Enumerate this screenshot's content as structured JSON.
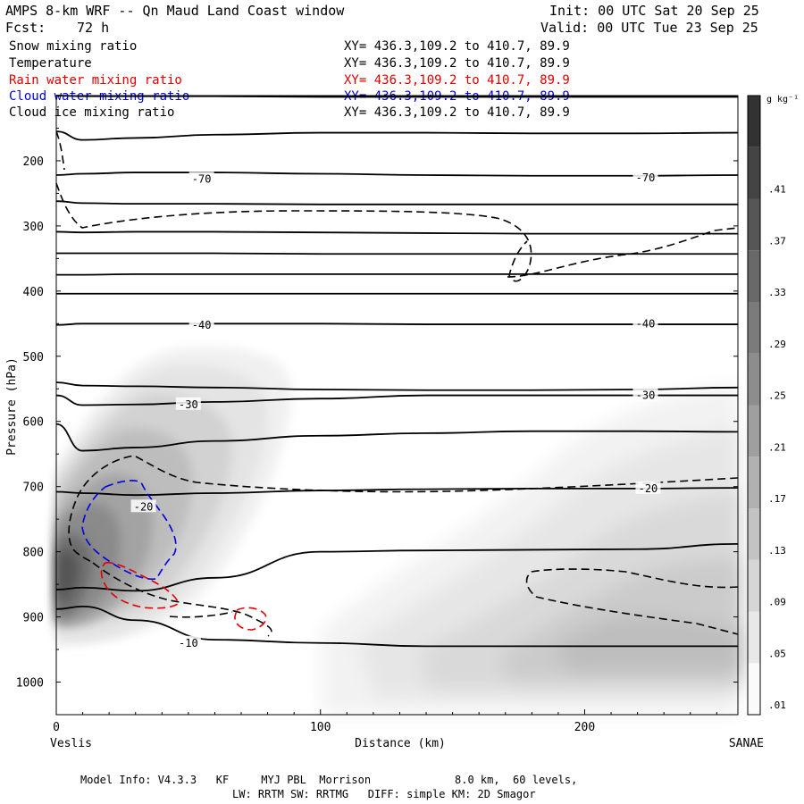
{
  "header": {
    "title": "AMPS 8-km WRF -- Qn Maud Land Coast window",
    "init": "Init: 00 UTC Sat 20 Sep 25",
    "fcst_label": "Fcst:",
    "fcst_value": "72 h",
    "valid": "Valid: 00 UTC Tue 23 Sep 25"
  },
  "legend": [
    {
      "label": "Snow mixing ratio",
      "xy": "XY= 436.3,109.2 to 410.7, 89.9",
      "color": "#000000"
    },
    {
      "label": "Temperature",
      "xy": "XY= 436.3,109.2 to 410.7, 89.9",
      "color": "#000000"
    },
    {
      "label": "Rain water mixing ratio",
      "xy": "XY= 436.3,109.2 to 410.7, 89.9",
      "color": "#e00000"
    },
    {
      "label": "Cloud water mixing ratio",
      "xy": "XY= 436.3,109.2 to 410.7, 89.9",
      "color": "#0000e0"
    },
    {
      "label": "Cloud ice mixing ratio",
      "xy": "XY= 436.3,109.2 to 410.7, 89.9",
      "color": "#000000"
    }
  ],
  "chart_data": {
    "type": "cross-section contour",
    "title": "AMPS 8-km WRF -- Qn Maud Land Coast window",
    "xlabel": "Distance (km)",
    "ylabel": "Pressure (hPa)",
    "xlim": [
      0,
      258
    ],
    "ylim": [
      1050,
      100
    ],
    "x_ticks": [
      0,
      100,
      200
    ],
    "y_ticks": [
      200,
      300,
      400,
      500,
      600,
      700,
      800,
      900,
      1000
    ],
    "endpoints": {
      "left": "Veslis",
      "right": "SANAE"
    },
    "colorbar": {
      "unit": "g kg⁻¹",
      "levels": [
        ".01",
        ".05",
        ".09",
        ".13",
        ".17",
        ".21",
        ".25",
        ".29",
        ".33",
        ".37",
        ".41"
      ]
    },
    "temperature_labels": [
      {
        "text": "-70",
        "x": 55,
        "p": 228
      },
      {
        "text": "-70",
        "x": 223,
        "p": 226
      },
      {
        "text": "-40",
        "x": 55,
        "p": 452
      },
      {
        "text": "-40",
        "x": 223,
        "p": 450
      },
      {
        "text": "-30",
        "x": 50,
        "p": 574
      },
      {
        "text": "-30",
        "x": 223,
        "p": 560
      },
      {
        "text": "-20",
        "x": 33,
        "p": 731
      },
      {
        "text": "-20",
        "x": 224,
        "p": 703
      },
      {
        "text": "-10",
        "x": 50,
        "p": 940
      }
    ],
    "isotherms_hPa_by_x": {
      "x_km": [
        0,
        10,
        30,
        60,
        100,
        140,
        180,
        220,
        258
      ],
      "lines": [
        [
          100,
          101,
          101,
          101,
          102,
          102,
          102,
          102,
          102
        ],
        [
          155,
          168,
          165,
          160,
          157,
          157,
          158,
          158,
          157
        ],
        [
          222,
          220,
          218,
          218,
          220,
          222,
          223,
          223,
          222
        ],
        [
          262,
          265,
          266,
          266,
          267,
          267,
          267,
          267,
          267
        ],
        [
          309,
          310,
          309,
          309,
          310,
          311,
          312,
          312,
          312
        ],
        [
          342,
          342,
          342,
          342,
          343,
          343,
          343,
          343,
          343
        ],
        [
          375,
          375,
          374,
          374,
          374,
          374,
          374,
          374,
          374
        ],
        [
          404,
          404,
          404,
          404,
          404,
          404,
          404,
          404,
          404
        ],
        [
          452,
          450,
          450,
          450,
          450,
          451,
          451,
          451,
          451
        ],
        [
          540,
          545,
          546,
          548,
          551,
          552,
          552,
          551,
          548
        ],
        [
          560,
          575,
          574,
          570,
          565,
          560,
          560,
          560,
          560
        ],
        [
          604,
          645,
          640,
          630,
          622,
          618,
          615,
          615,
          616
        ],
        [
          708,
          710,
          713,
          710,
          706,
          704,
          703,
          703,
          702
        ],
        [
          858,
          855,
          860,
          840,
          800,
          798,
          797,
          796,
          788
        ],
        [
          888,
          884,
          905,
          935,
          940,
          945,
          945,
          945,
          945
        ]
      ]
    },
    "snow_shading_max_g_per_kg": 0.41
  },
  "footer": {
    "line1": "Model Info: V4.3.3   KF     MYJ PBL  Morrison             8.0 km,  60 levels,",
    "line2": "LW: RRTM SW: RRTMG   DIFF: simple KM: 2D Smagor"
  }
}
